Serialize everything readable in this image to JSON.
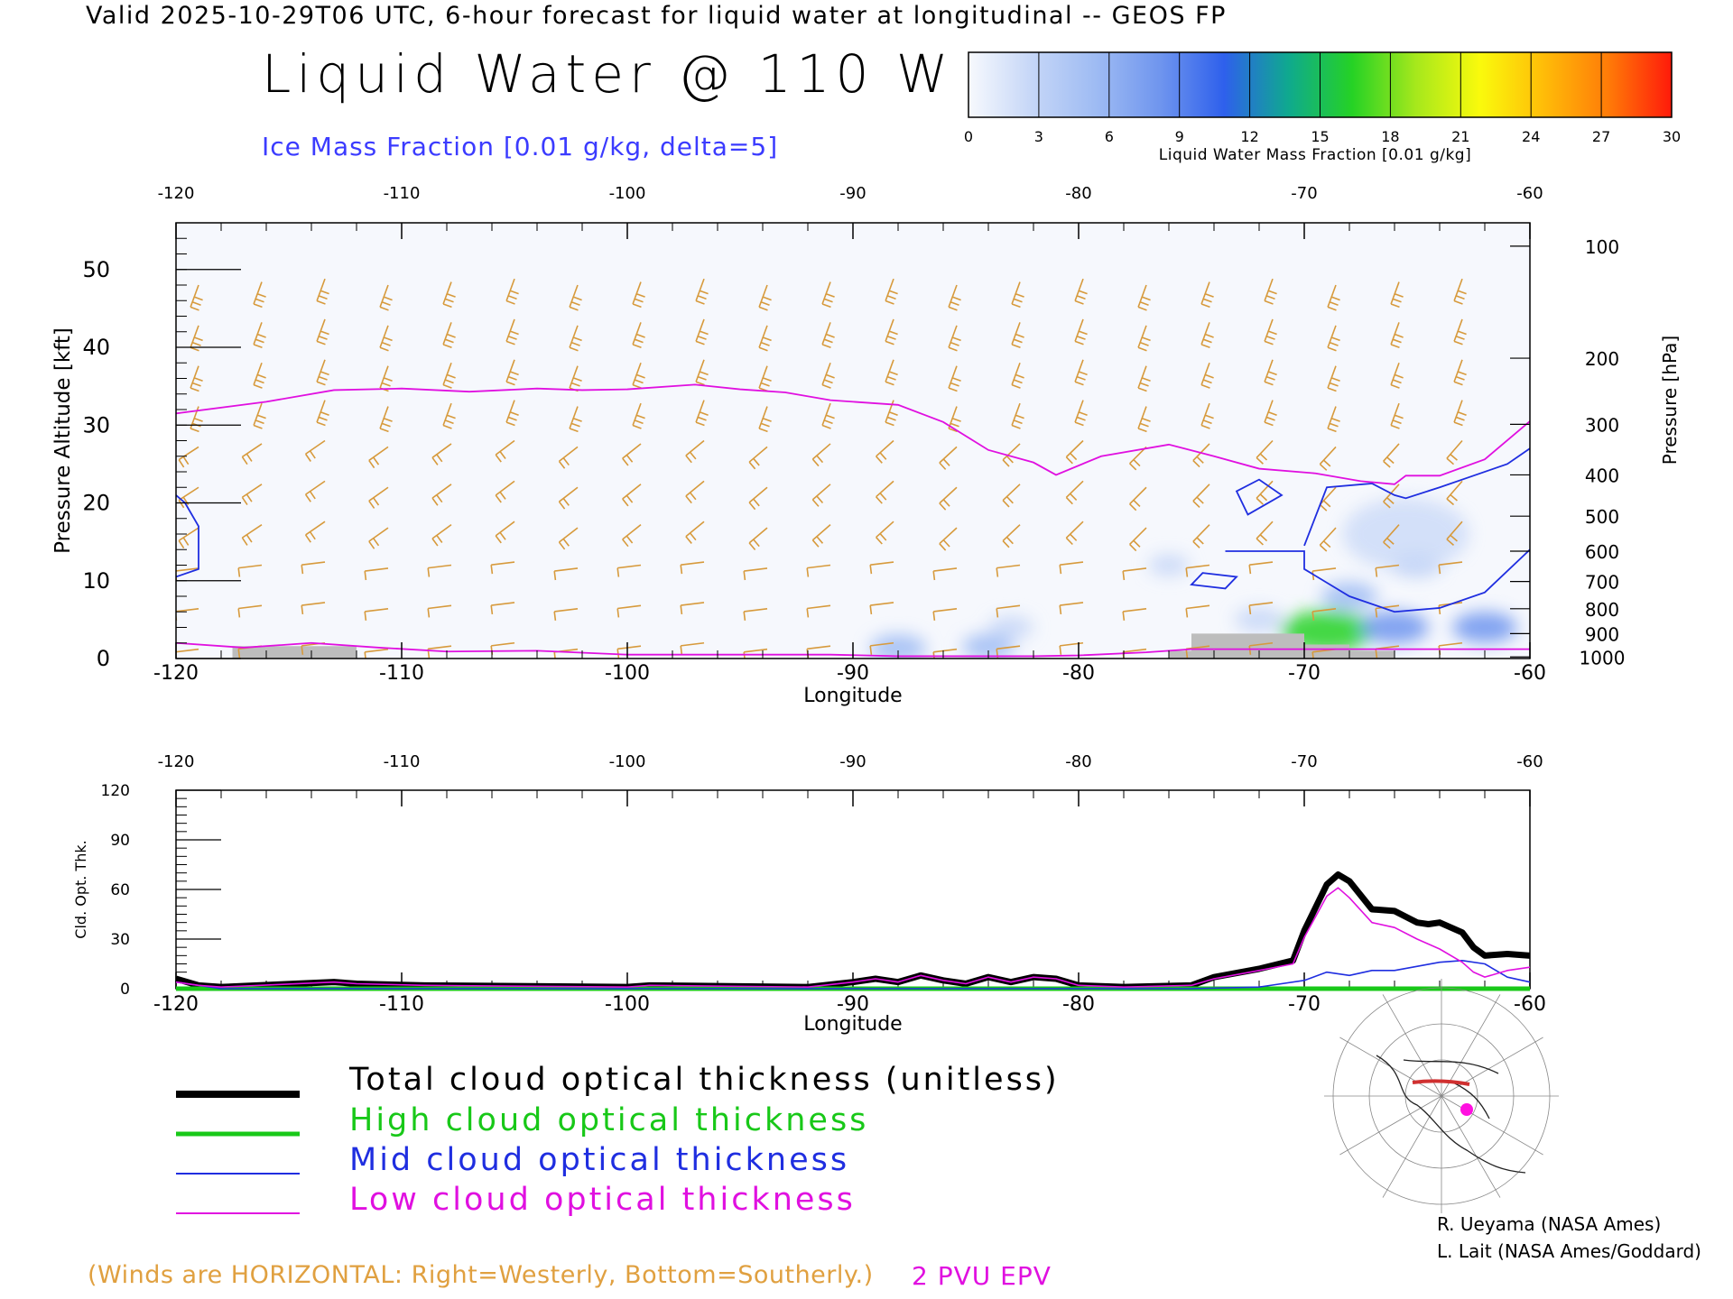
{
  "header": {
    "valid_line": "Valid 2025-10-29T06 UTC, 6-hour forecast for liquid water at longitudinal -- GEOS FP",
    "title": "Liquid Water @ 110 W",
    "ice_label": "Ice Mass Fraction [0.01 g/kg, delta=5]"
  },
  "colorbar": {
    "title": "Liquid Water Mass Fraction [0.01 g/kg]",
    "ticks": [
      "0",
      "3",
      "6",
      "9",
      "12",
      "15",
      "18",
      "21",
      "24",
      "27",
      "30"
    ],
    "colors": [
      "#f7f9fd",
      "#c5d6f7",
      "#9ebbf3",
      "#6f95ee",
      "#2e60ec",
      "#0fa98f",
      "#25d225",
      "#a6e81c",
      "#fafa0c",
      "#ffbc08",
      "#ff7c08",
      "#ff1a0a"
    ]
  },
  "legend": {
    "total": "Total cloud optical thickness (unitless)",
    "high": "High cloud optical thickness",
    "mid": "Mid cloud optical thickness",
    "low": "Low cloud optical thickness"
  },
  "credits": {
    "line1": "R. Ueyama (NASA Ames)",
    "line2": "L. Lait (NASA Ames/Goddard)"
  },
  "footer": {
    "winds_note": "(Winds are HORIZONTAL: Right=Westerly, Bottom=Southerly.)",
    "pvu_label": "2 PVU EPV"
  },
  "colors": {
    "epv": "#e010e0",
    "ice": "#1f2ee0",
    "barb": "#d79a3c",
    "terrain": "#bdbdbd",
    "total": "#000000",
    "high": "#18c818",
    "mid": "#1f2ee0",
    "low": "#e010e0"
  },
  "chart_data": [
    {
      "type": "heatmap",
      "title": "Liquid Water @ 110 W",
      "xlabel": "Longitude",
      "ylabel": "Pressure Altitude [kft]",
      "ylabel_right": "Pressure [hPa]",
      "xlim": [
        -120,
        -60
      ],
      "ylim": [
        0,
        56
      ],
      "x_ticks": [
        "-120",
        "-110",
        "-100",
        "-90",
        "-80",
        "-70",
        "-60"
      ],
      "y_ticks": [
        "0",
        "10",
        "20",
        "30",
        "40",
        "50"
      ],
      "pressure_ticks": [
        {
          "hPa": "100",
          "kft": 53
        },
        {
          "hPa": "200",
          "kft": 38.6
        },
        {
          "hPa": "300",
          "kft": 30.1
        },
        {
          "hPa": "400",
          "kft": 23.6
        },
        {
          "hPa": "500",
          "kft": 18.3
        },
        {
          "hPa": "600",
          "kft": 13.8
        },
        {
          "hPa": "700",
          "kft": 9.9
        },
        {
          "hPa": "800",
          "kft": 6.4
        },
        {
          "hPa": "900",
          "kft": 3.2
        },
        {
          "hPa": "1000",
          "kft": 0.2
        }
      ],
      "epv_2pvu": [
        [
          -120,
          31.5
        ],
        [
          -116,
          33
        ],
        [
          -113,
          34.5
        ],
        [
          -110,
          34.7
        ],
        [
          -107,
          34.3
        ],
        [
          -104,
          34.7
        ],
        [
          -102,
          34.5
        ],
        [
          -100,
          34.6
        ],
        [
          -97,
          35.2
        ],
        [
          -95,
          34.6
        ],
        [
          -93,
          34.2
        ],
        [
          -91,
          33.2
        ],
        [
          -88,
          32.6
        ],
        [
          -86,
          30.4
        ],
        [
          -84,
          26.8
        ],
        [
          -82,
          25.2
        ],
        [
          -81,
          23.6
        ],
        [
          -79,
          26
        ],
        [
          -76,
          27.5
        ],
        [
          -74,
          26
        ],
        [
          -72,
          24.4
        ],
        [
          -69.5,
          23.8
        ],
        [
          -67.5,
          22.8
        ],
        [
          -66,
          22.4
        ],
        [
          -65.5,
          23.5
        ],
        [
          -64,
          23.5
        ],
        [
          -62,
          25.6
        ],
        [
          -60,
          30.5
        ]
      ],
      "ice_contour": [
        [
          -120,
          21
        ],
        [
          -119.6,
          20
        ],
        [
          -119,
          17
        ],
        [
          -119,
          11.5
        ],
        [
          -120,
          10.5
        ]
      ],
      "ice_contour_2": [
        [
          -70,
          14.5
        ],
        [
          -69,
          22
        ],
        [
          -67,
          22.5
        ],
        [
          -66,
          21
        ],
        [
          -65.5,
          20.6
        ],
        [
          -64,
          22
        ],
        [
          -62.5,
          23.5
        ],
        [
          -61,
          25
        ],
        [
          -60,
          27
        ]
      ],
      "liquid_patches": [
        {
          "lon": -69,
          "kft": 3.5,
          "value": 15
        },
        {
          "lon": -66,
          "kft": 4,
          "value": 9
        },
        {
          "lon": -68,
          "kft": 8,
          "value": 6
        },
        {
          "lon": -65,
          "kft": 12,
          "value": 4
        },
        {
          "lon": -62,
          "kft": 4,
          "value": 8
        },
        {
          "lon": -72,
          "kft": 5,
          "value": 4
        },
        {
          "lon": -88,
          "kft": 1.3,
          "value": 6
        },
        {
          "lon": -84,
          "kft": 1.5,
          "value": 5
        },
        {
          "lon": -83,
          "kft": 4,
          "value": 3
        },
        {
          "lon": -76,
          "kft": 12,
          "value": 2
        }
      ]
    },
    {
      "type": "line",
      "xlabel": "Longitude",
      "ylabel": "Cld. Opt. Thk.",
      "xlim": [
        -120,
        -60
      ],
      "ylim": [
        0,
        120
      ],
      "x_ticks": [
        "-120",
        "-110",
        "-100",
        "-90",
        "-80",
        "-70",
        "-60"
      ],
      "y_ticks": [
        "0",
        "30",
        "60",
        "90",
        "120"
      ],
      "series": [
        {
          "name": "Total cloud optical thickness (unitless)",
          "x": [
            -120,
            -119,
            -118,
            -113,
            -112,
            -109,
            -100,
            -99,
            -92,
            -90,
            -89,
            -88,
            -87,
            -86,
            -85,
            -84,
            -83,
            -82,
            -81,
            -80,
            -78,
            -75,
            -74,
            -72,
            -70.5,
            -70,
            -69,
            -68.5,
            -68,
            -67,
            -66,
            -65,
            -64.5,
            -64,
            -63,
            -62.5,
            -62,
            -61,
            -60
          ],
          "values": [
            6,
            2,
            1,
            4,
            3,
            2,
            1,
            2,
            1,
            4,
            6,
            4,
            8,
            5,
            3,
            7,
            4,
            7,
            6,
            2,
            1,
            2,
            7,
            12,
            17,
            35,
            63,
            69,
            65,
            48,
            47,
            40,
            39,
            40,
            34,
            25,
            20,
            21,
            20
          ]
        },
        {
          "name": "High cloud optical thickness",
          "x": [
            -120,
            -60
          ],
          "values": [
            0,
            0
          ]
        },
        {
          "name": "Mid cloud optical thickness",
          "x": [
            -120,
            -118,
            -90,
            -75,
            -72,
            -70,
            -69,
            -68,
            -67,
            -66,
            -64,
            -63,
            -62,
            -61,
            -60
          ],
          "values": [
            4,
            0,
            0,
            0,
            1,
            5,
            10,
            8,
            11,
            11,
            16,
            17,
            15,
            7,
            4
          ]
        },
        {
          "name": "Low cloud optical thickness",
          "x": [
            -120,
            -119,
            -118,
            -113,
            -112,
            -109,
            -100,
            -99,
            -92,
            -90,
            -89,
            -88,
            -87,
            -86,
            -85,
            -84,
            -83,
            -82,
            -81,
            -80,
            -78,
            -75,
            -74,
            -72,
            -70.5,
            -70,
            -69,
            -68.5,
            -68,
            -67,
            -66,
            -65,
            -64.5,
            -64,
            -63,
            -62.5,
            -62,
            -61,
            -60
          ],
          "values": [
            4,
            2,
            1,
            4,
            3,
            2,
            1,
            2,
            1,
            4,
            6,
            4,
            8,
            5,
            3,
            7,
            4,
            7,
            6,
            2,
            1,
            2,
            6,
            11,
            15,
            31,
            56,
            61,
            55,
            40,
            37,
            30,
            27,
            24,
            16,
            10,
            7,
            11,
            13
          ]
        }
      ]
    }
  ]
}
